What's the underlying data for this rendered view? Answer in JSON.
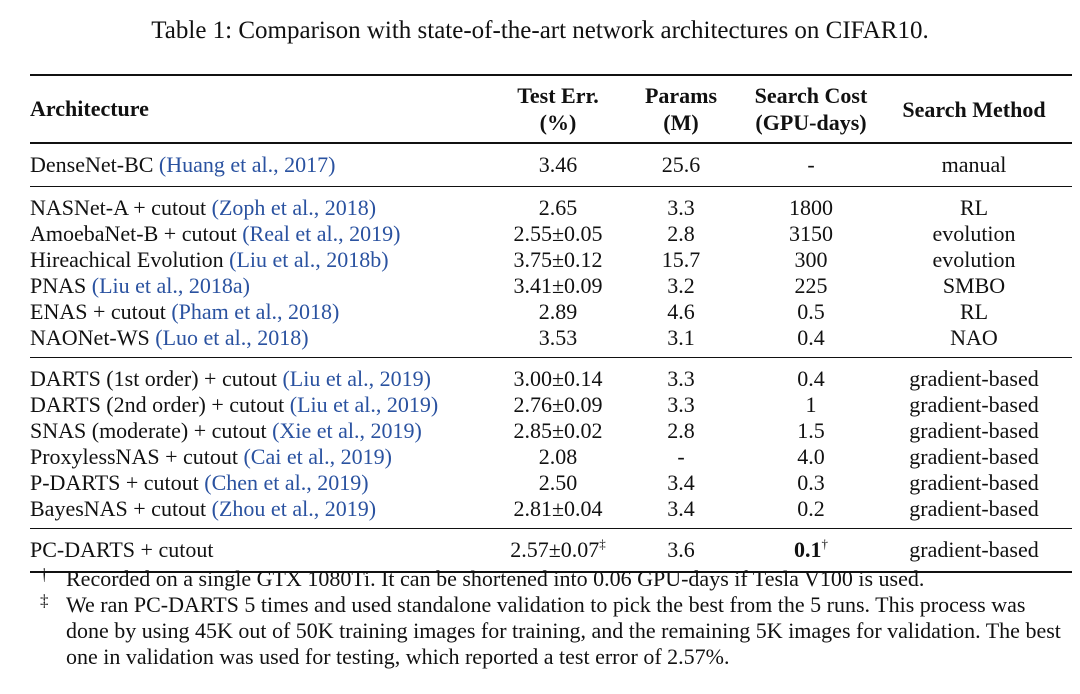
{
  "caption": "Table 1: Comparison with state-of-the-art network architectures on CIFAR10.",
  "headers": {
    "architecture": "Architecture",
    "test_err": [
      "Test Err.",
      "(%)"
    ],
    "params": [
      "Params",
      "(M)"
    ],
    "search_cost": [
      "Search Cost",
      "(GPU-days)"
    ],
    "search_method": "Search Method"
  },
  "groups": [
    [
      {
        "name": "DenseNet-BC",
        "cite": "(Huang et al., 2017)",
        "err": "3.46",
        "params": "25.6",
        "cost": "-",
        "method": "manual"
      }
    ],
    [
      {
        "name": "NASNet-A + cutout",
        "cite": "(Zoph et al., 2018)",
        "err": "2.65",
        "params": "3.3",
        "cost": "1800",
        "method": "RL"
      },
      {
        "name": "AmoebaNet-B + cutout",
        "cite": "(Real et al., 2019)",
        "err": "2.55±0.05",
        "params": "2.8",
        "cost": "3150",
        "method": "evolution"
      },
      {
        "name": "Hireachical Evolution",
        "cite": "(Liu et al., 2018b)",
        "err": "3.75±0.12",
        "params": "15.7",
        "cost": "300",
        "method": "evolution"
      },
      {
        "name": "PNAS",
        "cite": "(Liu et al., 2018a)",
        "err": "3.41±0.09",
        "params": "3.2",
        "cost": "225",
        "method": "SMBO"
      },
      {
        "name": "ENAS + cutout",
        "cite": "(Pham et al., 2018)",
        "err": "2.89",
        "params": "4.6",
        "cost": "0.5",
        "method": "RL"
      },
      {
        "name": "NAONet-WS",
        "cite": "(Luo et al., 2018)",
        "err": "3.53",
        "params": "3.1",
        "cost": "0.4",
        "method": "NAO"
      }
    ],
    [
      {
        "name": "DARTS (1st order) + cutout",
        "cite": "(Liu et al., 2019)",
        "err": "3.00±0.14",
        "params": "3.3",
        "cost": "0.4",
        "method": "gradient-based"
      },
      {
        "name": "DARTS (2nd order) + cutout",
        "cite": "(Liu et al., 2019)",
        "err": "2.76±0.09",
        "params": "3.3",
        "cost": "1",
        "method": "gradient-based"
      },
      {
        "name": "SNAS (moderate) + cutout",
        "cite": "(Xie et al., 2019)",
        "err": "2.85±0.02",
        "params": "2.8",
        "cost": "1.5",
        "method": "gradient-based"
      },
      {
        "name": "ProxylessNAS + cutout",
        "cite": "(Cai et al., 2019)",
        "err": "2.08",
        "params": "-",
        "cost": "4.0",
        "method": "gradient-based"
      },
      {
        "name": "P-DARTS + cutout",
        "cite": "(Chen et al., 2019)",
        "err": "2.50",
        "params": "3.4",
        "cost": "0.3",
        "method": "gradient-based"
      },
      {
        "name": "BayesNAS + cutout",
        "cite": "(Zhou et al., 2019)",
        "err": "2.81±0.04",
        "params": "3.4",
        "cost": "0.2",
        "method": "gradient-based"
      }
    ]
  ],
  "ours": {
    "name": "PC-DARTS + cutout",
    "err": "2.57±0.07",
    "err_mark": "‡",
    "params": "3.6",
    "cost": "0.1",
    "cost_mark": "†",
    "method": "gradient-based"
  },
  "notes": [
    {
      "mark": "†",
      "text": "Recorded on a single GTX 1080Ti. It can be shortened into 0.06 GPU-days if Tesla V100 is used."
    },
    {
      "mark": "‡",
      "text": "We ran PC-DARTS 5 times and used standalone validation to pick the best from the 5 runs. This process was done by using 45K out of 50K training images for training, and the remaining 5K images for validation. The best one in validation was used for testing, which reported a test error of 2.57%."
    }
  ],
  "colors": {
    "citation": "#2a52a0",
    "text": "#111111"
  }
}
